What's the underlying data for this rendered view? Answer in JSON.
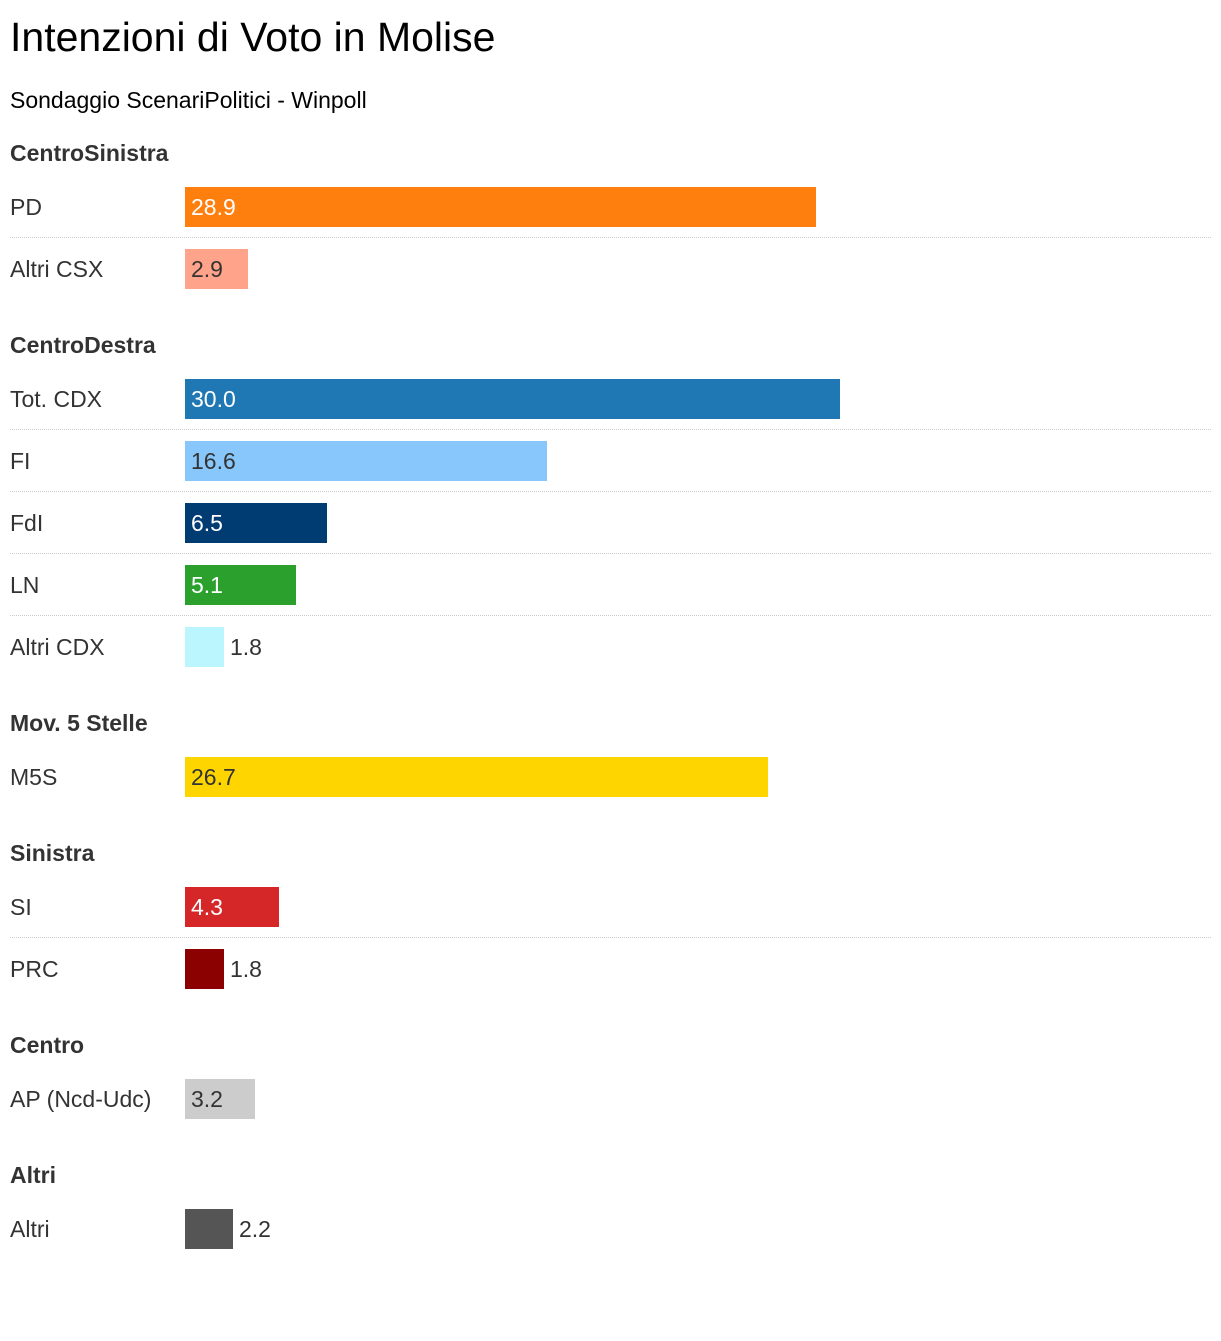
{
  "title": "Intenzioni di Voto in Molise",
  "subtitle": "Sondaggio ScenariPolitici - Winpoll",
  "chart_data": {
    "type": "bar",
    "orientation": "horizontal",
    "title": "Intenzioni di Voto in Molise",
    "subtitle": "Sondaggio ScenariPolitici - Winpoll",
    "xlim": [
      0,
      30
    ],
    "grid": false,
    "groups": [
      {
        "name": "CentroSinistra",
        "rows": [
          {
            "label": "PD",
            "value": 28.9,
            "value_text": "28.9",
            "color": "#ff7f0e",
            "text_color": "#ffffff"
          },
          {
            "label": "Altri CSX",
            "value": 2.9,
            "value_text": "2.9",
            "color": "#ffa38a",
            "text_color": "#333333"
          }
        ]
      },
      {
        "name": "CentroDestra",
        "rows": [
          {
            "label": "Tot. CDX",
            "value": 30.0,
            "value_text": "30.0",
            "color": "#1f77b4",
            "text_color": "#ffffff"
          },
          {
            "label": "FI",
            "value": 16.6,
            "value_text": "16.6",
            "color": "#87c7fb",
            "text_color": "#333333"
          },
          {
            "label": "FdI",
            "value": 6.5,
            "value_text": "6.5",
            "color": "#003c71",
            "text_color": "#ffffff"
          },
          {
            "label": "LN",
            "value": 5.1,
            "value_text": "5.1",
            "color": "#2ca02c",
            "text_color": "#ffffff"
          },
          {
            "label": "Altri CDX",
            "value": 1.8,
            "value_text": "1.8",
            "color": "#bbf6fe",
            "text_color": "#333333"
          }
        ]
      },
      {
        "name": "Mov. 5 Stelle",
        "rows": [
          {
            "label": "M5S",
            "value": 26.7,
            "value_text": "26.7",
            "color": "#ffd500",
            "text_color": "#333333"
          }
        ]
      },
      {
        "name": "Sinistra",
        "rows": [
          {
            "label": "SI",
            "value": 4.3,
            "value_text": "4.3",
            "color": "#d62728",
            "text_color": "#ffffff"
          },
          {
            "label": "PRC",
            "value": 1.8,
            "value_text": "1.8",
            "color": "#8b0000",
            "text_color": "#333333"
          }
        ]
      },
      {
        "name": "Centro",
        "rows": [
          {
            "label": "AP (Ncd-Udc)",
            "value": 3.2,
            "value_text": "3.2",
            "color": "#cccccc",
            "text_color": "#333333"
          }
        ]
      },
      {
        "name": "Altri",
        "rows": [
          {
            "label": "Altri",
            "value": 2.2,
            "value_text": "2.2",
            "color": "#555555",
            "text_color": "#ffffff"
          }
        ]
      }
    ]
  }
}
